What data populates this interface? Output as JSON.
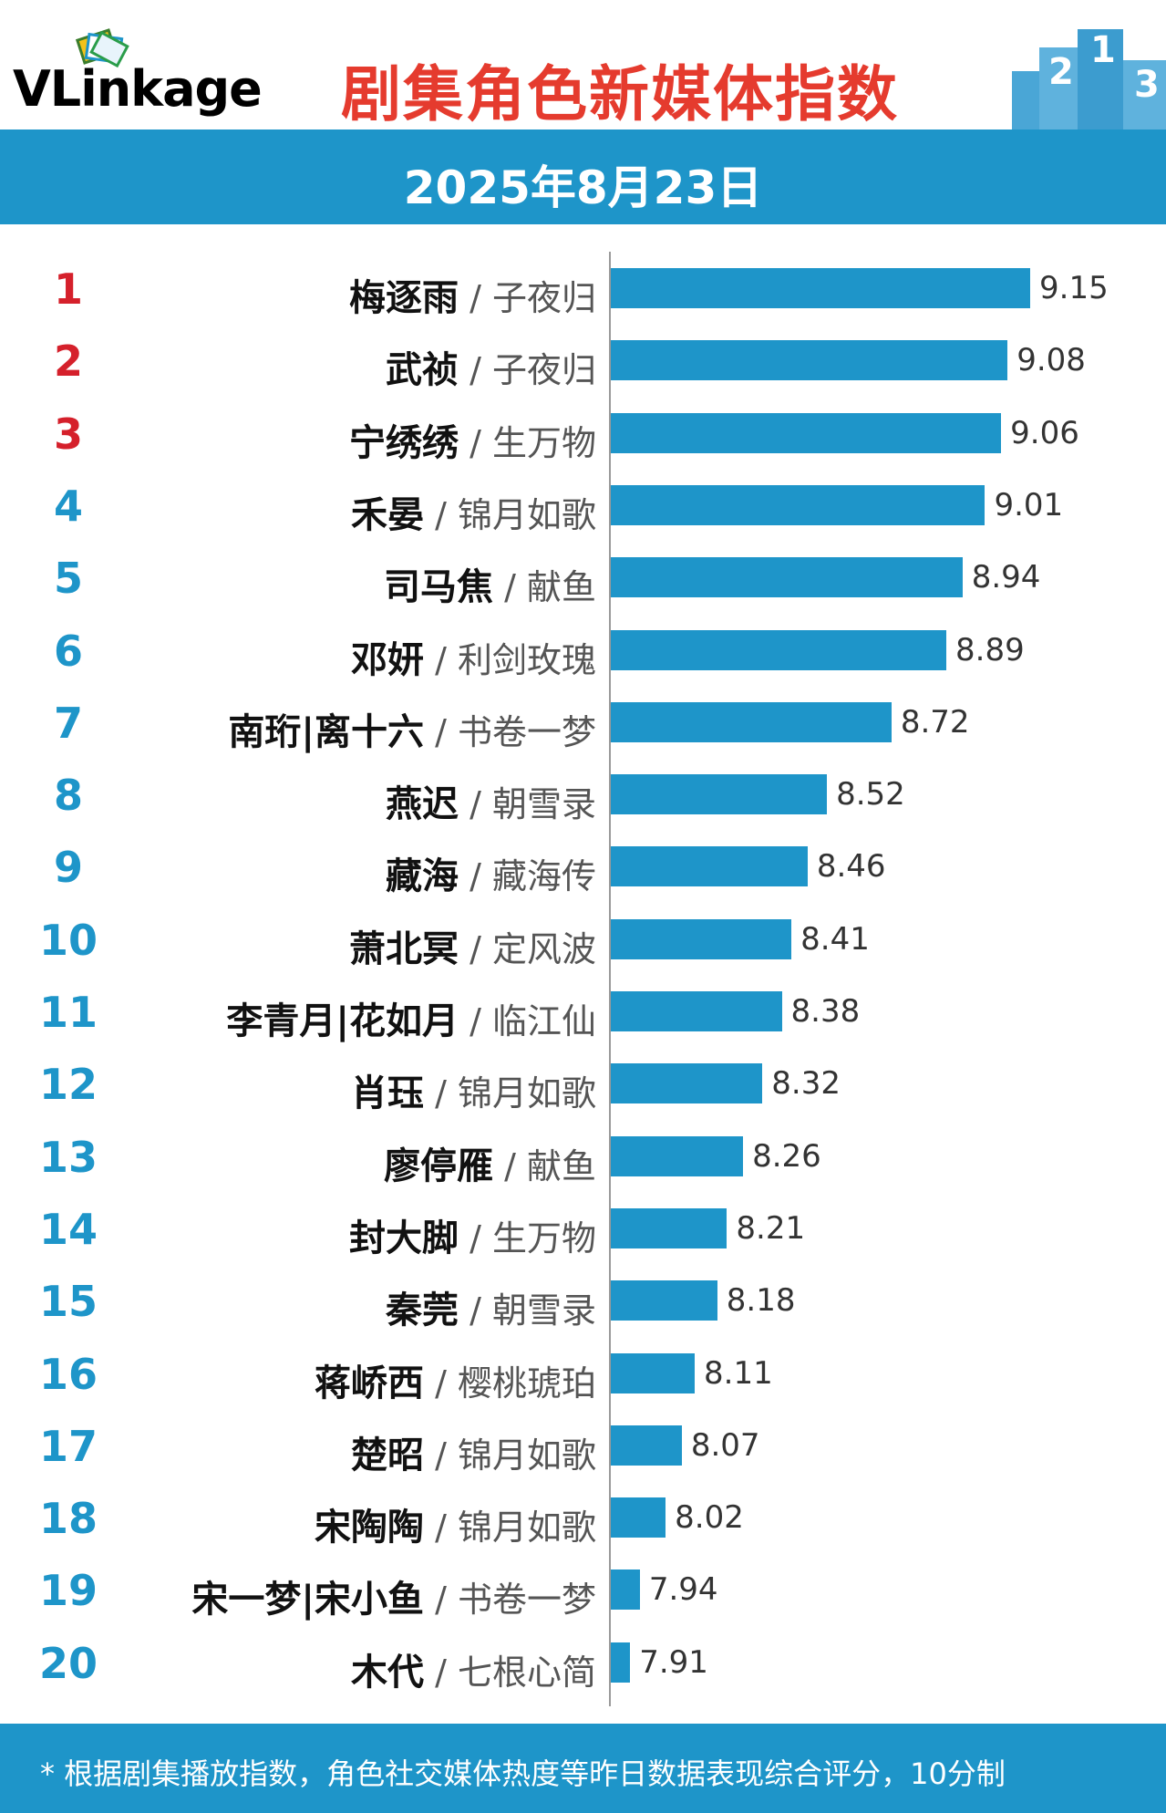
{
  "header": {
    "logo_text": "VLinkage",
    "title": "剧集角色新媒体指数",
    "date": "2025年8月23日"
  },
  "colors": {
    "accent": "#1e95c9",
    "title_red": "#e53b2e",
    "top_rank_red": "#d5202b"
  },
  "chart_data": {
    "type": "bar",
    "orientation": "horizontal",
    "rows": [
      {
        "rank": "1",
        "role": "梅逐雨",
        "drama": "子夜归",
        "value": 9.15,
        "label": "9.15"
      },
      {
        "rank": "2",
        "role": "武祯",
        "drama": "子夜归",
        "value": 9.08,
        "label": "9.08"
      },
      {
        "rank": "3",
        "role": "宁绣绣",
        "drama": "生万物",
        "value": 9.06,
        "label": "9.06"
      },
      {
        "rank": "4",
        "role": "禾晏",
        "drama": "锦月如歌",
        "value": 9.01,
        "label": "9.01"
      },
      {
        "rank": "5",
        "role": "司马焦",
        "drama": "献鱼",
        "value": 8.94,
        "label": "8.94"
      },
      {
        "rank": "6",
        "role": "邓妍",
        "drama": "利剑玫瑰",
        "value": 8.89,
        "label": "8.89"
      },
      {
        "rank": "7",
        "role": "南珩|离十六",
        "drama": "书卷一梦",
        "value": 8.72,
        "label": "8.72"
      },
      {
        "rank": "8",
        "role": "燕迟",
        "drama": "朝雪录",
        "value": 8.52,
        "label": "8.52"
      },
      {
        "rank": "9",
        "role": "藏海",
        "drama": "藏海传",
        "value": 8.46,
        "label": "8.46"
      },
      {
        "rank": "10",
        "role": "萧北冥",
        "drama": "定风波",
        "value": 8.41,
        "label": "8.41"
      },
      {
        "rank": "11",
        "role": "李青月|花如月",
        "drama": "临江仙",
        "value": 8.38,
        "label": "8.38"
      },
      {
        "rank": "12",
        "role": "肖珏",
        "drama": "锦月如歌",
        "value": 8.32,
        "label": "8.32"
      },
      {
        "rank": "13",
        "role": "廖停雁",
        "drama": "献鱼",
        "value": 8.26,
        "label": "8.26"
      },
      {
        "rank": "14",
        "role": "封大脚",
        "drama": "生万物",
        "value": 8.21,
        "label": "8.21"
      },
      {
        "rank": "15",
        "role": "秦莞",
        "drama": "朝雪录",
        "value": 8.18,
        "label": "8.18"
      },
      {
        "rank": "16",
        "role": "蒋峤西",
        "drama": "樱桃琥珀",
        "value": 8.11,
        "label": "8.11"
      },
      {
        "rank": "17",
        "role": "楚昭",
        "drama": "锦月如歌",
        "value": 8.07,
        "label": "8.07"
      },
      {
        "rank": "18",
        "role": "宋陶陶",
        "drama": "锦月如歌",
        "value": 8.02,
        "label": "8.02"
      },
      {
        "rank": "19",
        "role": "宋一梦|宋小鱼",
        "drama": "书卷一梦",
        "value": 7.94,
        "label": "7.94"
      },
      {
        "rank": "20",
        "role": "木代",
        "drama": "七根心简",
        "value": 7.91,
        "label": "7.91"
      }
    ],
    "xlim": [
      7.85,
      9.15
    ],
    "grid": false
  },
  "footer": {
    "note": "* 根据剧集播放指数，角色社交媒体热度等昨日数据表现综合评分，10分制"
  }
}
